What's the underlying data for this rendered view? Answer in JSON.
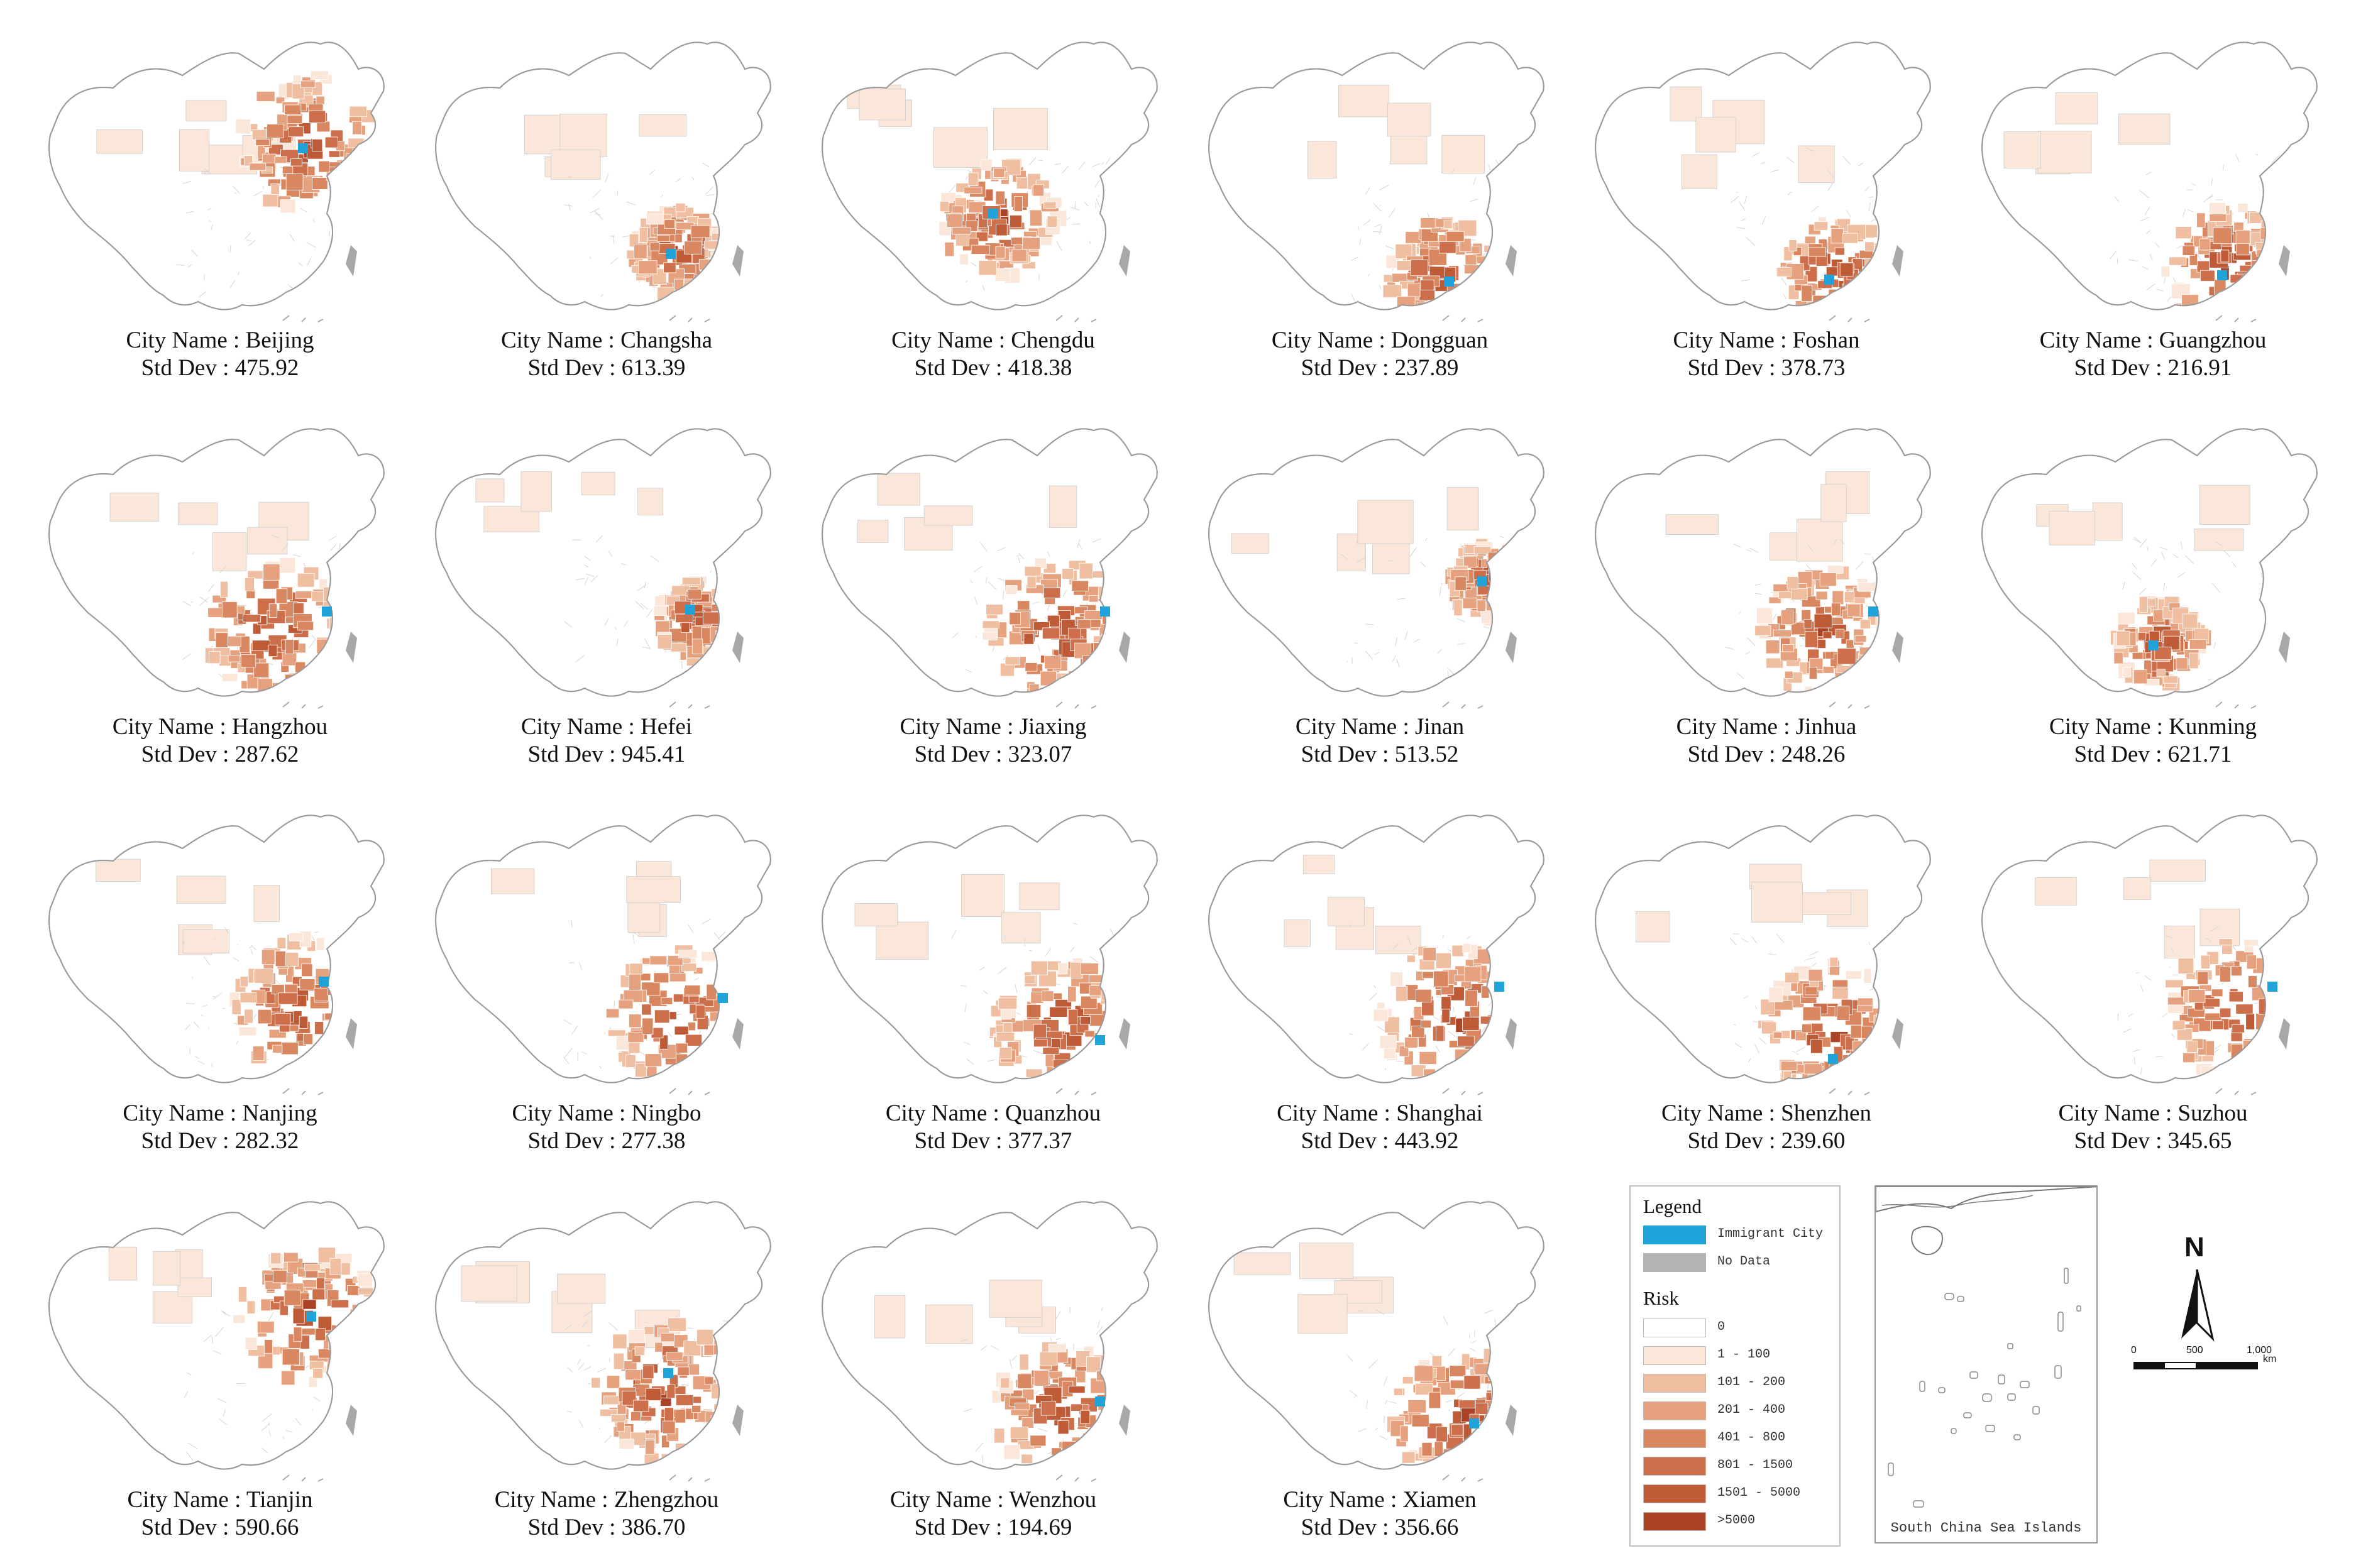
{
  "panels": [
    {
      "city_label": "City Name : Beijing",
      "std_label": "Std Dev : 475.92",
      "city": "Beijing",
      "std_dev": 475.92
    },
    {
      "city_label": "City Name : Changsha",
      "std_label": "Std Dev : 613.39",
      "city": "Changsha",
      "std_dev": 613.39
    },
    {
      "city_label": "City Name : Chengdu",
      "std_label": "Std Dev : 418.38",
      "city": "Chengdu",
      "std_dev": 418.38
    },
    {
      "city_label": "City Name :  Dongguan",
      "std_label": "Std Dev : 237.89",
      "city": "Dongguan",
      "std_dev": 237.89
    },
    {
      "city_label": "City Name : Foshan",
      "std_label": "Std Dev : 378.73",
      "city": "Foshan",
      "std_dev": 378.73
    },
    {
      "city_label": "City Name : Guangzhou",
      "std_label": "Std Dev : 216.91",
      "city": "Guangzhou",
      "std_dev": 216.91
    },
    {
      "city_label": "City Name : Hangzhou",
      "std_label": "Std Dev : 287.62",
      "city": "Hangzhou",
      "std_dev": 287.62
    },
    {
      "city_label": "City Name : Hefei",
      "std_label": "Std Dev : 945.41",
      "city": "Hefei",
      "std_dev": 945.41
    },
    {
      "city_label": "City Name : Jiaxing",
      "std_label": "Std Dev : 323.07",
      "city": "Jiaxing",
      "std_dev": 323.07
    },
    {
      "city_label": "City Name : Jinan",
      "std_label": "Std Dev : 513.52",
      "city": "Jinan",
      "std_dev": 513.52
    },
    {
      "city_label": "City Name : Jinhua",
      "std_label": "Std Dev : 248.26",
      "city": "Jinhua",
      "std_dev": 248.26
    },
    {
      "city_label": "City Name : Kunming",
      "std_label": "Std Dev : 621.71",
      "city": "Kunming",
      "std_dev": 621.71
    },
    {
      "city_label": "City Name : Nanjing",
      "std_label": "Std Dev : 282.32",
      "city": "Nanjing",
      "std_dev": 282.32
    },
    {
      "city_label": "City Name : Ningbo",
      "std_label": "Std Dev : 277.38",
      "city": "Ningbo",
      "std_dev": 277.38
    },
    {
      "city_label": "City Name : Quanzhou",
      "std_label": "Std Dev : 377.37",
      "city": "Quanzhou",
      "std_dev": 377.37
    },
    {
      "city_label": "City Name : Shanghai",
      "std_label": "Std Dev : 443.92",
      "city": "Shanghai",
      "std_dev": 443.92
    },
    {
      "city_label": "City Name : Shenzhen",
      "std_label": "Std Dev : 239.60",
      "city": "Shenzhen",
      "std_dev": 239.6
    },
    {
      "city_label": "City Name : Suzhou",
      "std_label": "Std Dev : 345.65",
      "city": "Suzhou",
      "std_dev": 345.65
    },
    {
      "city_label": "City Name : Tianjin",
      "std_label": "Std Dev : 590.66",
      "city": "Tianjin",
      "std_dev": 590.66
    },
    {
      "city_label": "City Name : Zhengzhou",
      "std_label": "Std Dev : 386.70",
      "city": "Zhengzhou",
      "std_dev": 386.7
    },
    {
      "city_label": "City Name : Wenzhou",
      "std_label": "Std Dev : 194.69",
      "city": "Wenzhou",
      "std_dev": 194.69
    },
    {
      "city_label": "City Name : Xiamen",
      "std_label": "Std Dev : 356.66",
      "city": "Xiamen",
      "std_dev": 356.66
    }
  ],
  "legend": {
    "title": "Legend",
    "immigrant_label": "Immigrant City",
    "immigrant_color": "#1fa3d8",
    "nodata_label": "No Data",
    "nodata_color": "#b3b3b3",
    "risk_title": "Risk",
    "classes": [
      {
        "label": "0",
        "color": "#ffffff"
      },
      {
        "label": "1 - 100",
        "color": "#fbe7da"
      },
      {
        "label": "101 - 200",
        "color": "#f0bfa1"
      },
      {
        "label": "201 - 400",
        "color": "#e6a27f"
      },
      {
        "label": "401 - 800",
        "color": "#d98761"
      },
      {
        "label": "801 - 1500",
        "color": "#cd6f4b"
      },
      {
        "label": "1501 - 5000",
        "color": "#bf5a37"
      },
      {
        "label": ">5000",
        "color": "#ab4426"
      }
    ]
  },
  "inset": {
    "label": "South China Sea Islands"
  },
  "north_arrow": {
    "letter": "N"
  },
  "scale_bar": {
    "labels": [
      "0",
      "500",
      "1,000"
    ],
    "unit": "km"
  }
}
